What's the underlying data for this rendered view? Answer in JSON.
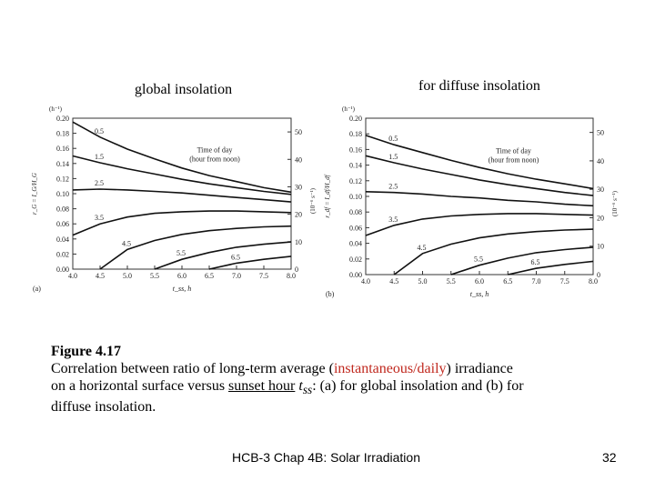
{
  "labels": {
    "a_heading": "global insolation",
    "b_heading": "for diffuse insolation"
  },
  "chart_data": [
    {
      "type": "line",
      "panel": "(a)",
      "xlabel": "t_ss, h",
      "ylabel": "r_G = I_G/H_G",
      "yunit": "(h⁻¹)",
      "y2label": "(10⁻⁶ s⁻¹)",
      "xlim": [
        4.0,
        8.0
      ],
      "ylim": [
        0.0,
        0.2
      ],
      "y2lim": [
        0,
        55
      ],
      "xticks": [
        "4.0",
        "4.5",
        "5.0",
        "5.5",
        "6.0",
        "6.5",
        "7.0",
        "7.5",
        "8.0"
      ],
      "yticks": [
        "0.00",
        "0.02",
        "0.04",
        "0.06",
        "0.08",
        "0.10",
        "0.12",
        "0.14",
        "0.16",
        "0.18",
        "0.20"
      ],
      "y2ticks": [
        "0",
        "10",
        "20",
        "30",
        "40",
        "50"
      ],
      "annotation": [
        "Time of day",
        "(hour from noon)"
      ],
      "series": [
        {
          "name": "0.5",
          "x": [
            4.0,
            4.5,
            5.0,
            5.5,
            6.0,
            6.5,
            7.0,
            7.5,
            8.0
          ],
          "y": [
            0.195,
            0.175,
            0.159,
            0.146,
            0.134,
            0.124,
            0.116,
            0.108,
            0.102
          ]
        },
        {
          "name": "1.5",
          "x": [
            4.0,
            4.5,
            5.0,
            5.5,
            6.0,
            6.5,
            7.0,
            7.5,
            8.0
          ],
          "y": [
            0.15,
            0.141,
            0.133,
            0.126,
            0.119,
            0.113,
            0.108,
            0.103,
            0.099
          ]
        },
        {
          "name": "2.5",
          "x": [
            4.0,
            4.5,
            5.0,
            5.5,
            6.0,
            6.5,
            7.0,
            7.5,
            8.0
          ],
          "y": [
            0.105,
            0.106,
            0.105,
            0.103,
            0.101,
            0.098,
            0.095,
            0.092,
            0.089
          ]
        },
        {
          "name": "3.5",
          "x": [
            4.0,
            4.5,
            5.0,
            5.5,
            6.0,
            6.5,
            7.0,
            7.5,
            8.0
          ],
          "y": [
            0.045,
            0.06,
            0.069,
            0.074,
            0.076,
            0.077,
            0.077,
            0.076,
            0.075
          ]
        },
        {
          "name": "4.5",
          "x": [
            4.5,
            5.0,
            5.5,
            6.0,
            6.5,
            7.0,
            7.5,
            8.0
          ],
          "y": [
            0.0,
            0.026,
            0.038,
            0.046,
            0.051,
            0.054,
            0.056,
            0.057
          ]
        },
        {
          "name": "5.5",
          "x": [
            5.5,
            6.0,
            6.5,
            7.0,
            7.5,
            8.0
          ],
          "y": [
            0.0,
            0.013,
            0.022,
            0.029,
            0.033,
            0.036
          ]
        },
        {
          "name": "6.5",
          "x": [
            6.5,
            7.0,
            7.5,
            8.0
          ],
          "y": [
            0.0,
            0.008,
            0.013,
            0.017
          ]
        }
      ]
    },
    {
      "type": "line",
      "panel": "(b)",
      "xlabel": "t_ss, h",
      "ylabel": "r_df = I_df/H_df",
      "yunit": "(h⁻¹)",
      "y2label": "(10⁻⁶ s⁻¹)",
      "xlim": [
        4.0,
        8.0
      ],
      "ylim": [
        0.0,
        0.2
      ],
      "y2lim": [
        0,
        55
      ],
      "xticks": [
        "4.0",
        "4.5",
        "5.0",
        "5.5",
        "6.0",
        "6.5",
        "7.0",
        "7.5",
        "8.0"
      ],
      "yticks": [
        "0.00",
        "0.02",
        "0.04",
        "0.06",
        "0.08",
        "0.10",
        "0.12",
        "0.14",
        "0.16",
        "0.18",
        "0.20"
      ],
      "y2ticks": [
        "0",
        "10",
        "20",
        "30",
        "40",
        "50"
      ],
      "annotation": [
        "Time of day",
        "(hour from noon)"
      ],
      "series": [
        {
          "name": "0.5",
          "x": [
            4.0,
            4.5,
            5.0,
            5.5,
            6.0,
            6.5,
            7.0,
            7.5,
            8.0
          ],
          "y": [
            0.178,
            0.166,
            0.156,
            0.146,
            0.137,
            0.129,
            0.122,
            0.116,
            0.11
          ]
        },
        {
          "name": "1.5",
          "x": [
            4.0,
            4.5,
            5.0,
            5.5,
            6.0,
            6.5,
            7.0,
            7.5,
            8.0
          ],
          "y": [
            0.152,
            0.143,
            0.135,
            0.128,
            0.121,
            0.115,
            0.11,
            0.105,
            0.101
          ]
        },
        {
          "name": "2.5",
          "x": [
            4.0,
            4.5,
            5.0,
            5.5,
            6.0,
            6.5,
            7.0,
            7.5,
            8.0
          ],
          "y": [
            0.106,
            0.105,
            0.103,
            0.1,
            0.098,
            0.095,
            0.093,
            0.09,
            0.088
          ]
        },
        {
          "name": "3.5",
          "x": [
            4.0,
            4.5,
            5.0,
            5.5,
            6.0,
            6.5,
            7.0,
            7.5,
            8.0
          ],
          "y": [
            0.05,
            0.063,
            0.071,
            0.075,
            0.077,
            0.078,
            0.078,
            0.077,
            0.076
          ]
        },
        {
          "name": "4.5",
          "x": [
            4.5,
            5.0,
            5.5,
            6.0,
            6.5,
            7.0,
            7.5,
            8.0
          ],
          "y": [
            0.0,
            0.027,
            0.039,
            0.047,
            0.052,
            0.055,
            0.057,
            0.058
          ]
        },
        {
          "name": "5.5",
          "x": [
            5.5,
            6.0,
            6.5,
            7.0,
            7.5,
            8.0
          ],
          "y": [
            0.0,
            0.012,
            0.021,
            0.028,
            0.032,
            0.035
          ]
        },
        {
          "name": "6.5",
          "x": [
            6.5,
            7.0,
            7.5,
            8.0
          ],
          "y": [
            0.0,
            0.008,
            0.013,
            0.017
          ]
        }
      ]
    }
  ],
  "caption": {
    "figure": "Figure 4.17",
    "line1_a": "Correlation between ratio of long-term average (",
    "line1_red": "instantaneous/daily",
    "line1_b": ")  irradiance",
    "line2_a": "on a horizontal surface versus ",
    "line2_ul": "sunset hour",
    "line2_sym": " t",
    "line2_sub": "ss",
    "line2_b": ": (a) for global insolation and (b) for",
    "line3": "diffuse insolation."
  },
  "footer": {
    "text": "HCB-3 Chap 4B: Solar Irradiation",
    "page": "32"
  }
}
